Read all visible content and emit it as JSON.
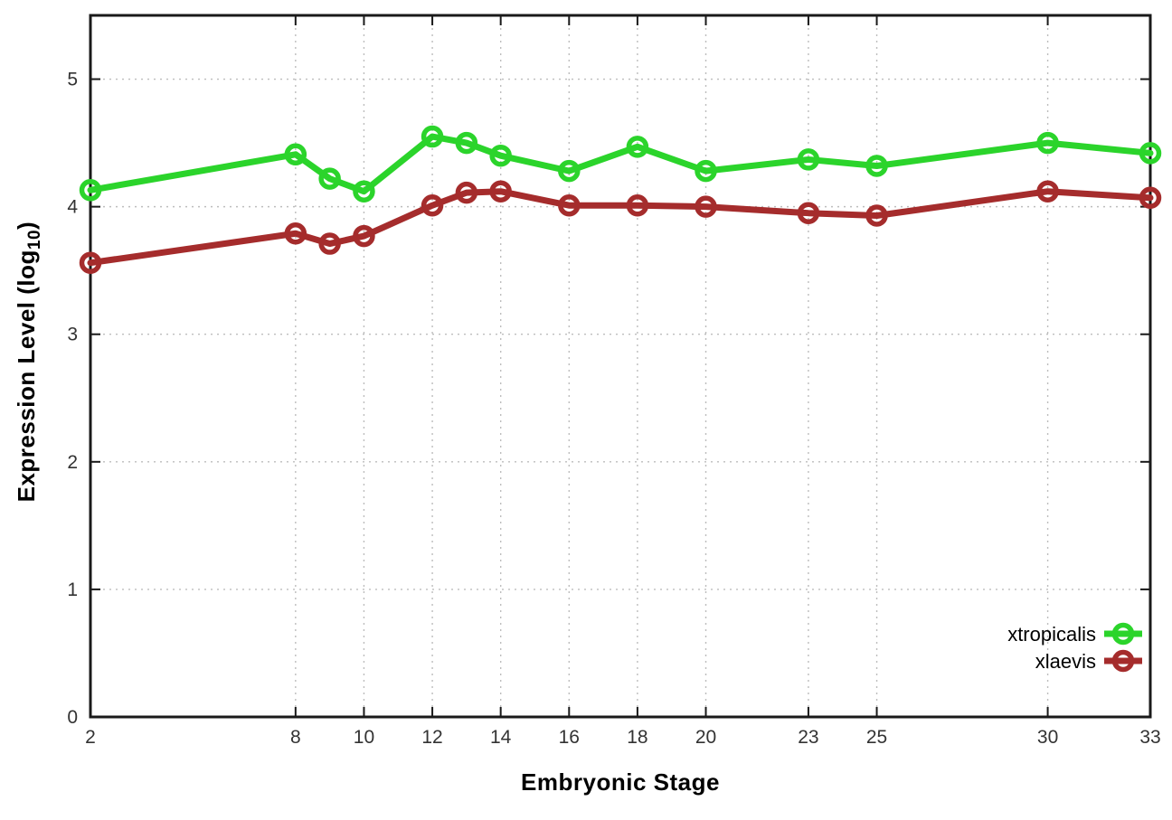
{
  "chart_data": {
    "type": "line",
    "title": "",
    "xlabel": "Embryonic Stage",
    "ylabel": {
      "prefix": "Expression Level (log",
      "sub": "10",
      "suffix": ")"
    },
    "x": [
      2,
      8,
      9,
      10,
      12,
      13,
      14,
      16,
      18,
      20,
      23,
      25,
      30,
      33
    ],
    "xticks": [
      2,
      8,
      10,
      12,
      14,
      16,
      18,
      20,
      23,
      25,
      30,
      33
    ],
    "yticks": [
      0,
      1,
      2,
      3,
      4,
      5
    ],
    "xlim": [
      2,
      33
    ],
    "ylim": [
      0,
      5.5
    ],
    "grid": "dotted-major",
    "legend_position": "inside-right",
    "series": [
      {
        "name": "xtropicalis",
        "color": "#2bd42b",
        "values": [
          4.13,
          4.41,
          4.22,
          4.12,
          4.55,
          4.5,
          4.4,
          4.28,
          4.47,
          4.28,
          4.37,
          4.32,
          4.5,
          4.42
        ]
      },
      {
        "name": "xlaevis",
        "color": "#a52c2c",
        "values": [
          3.56,
          3.79,
          3.71,
          3.77,
          4.01,
          4.11,
          4.12,
          4.01,
          4.01,
          4.0,
          3.95,
          3.93,
          4.12,
          4.07
        ]
      }
    ],
    "colors": {
      "frame": "#1a1a1a",
      "grid": "#bdbdbd",
      "tick_text": "#333333",
      "background": "#ffffff"
    }
  }
}
